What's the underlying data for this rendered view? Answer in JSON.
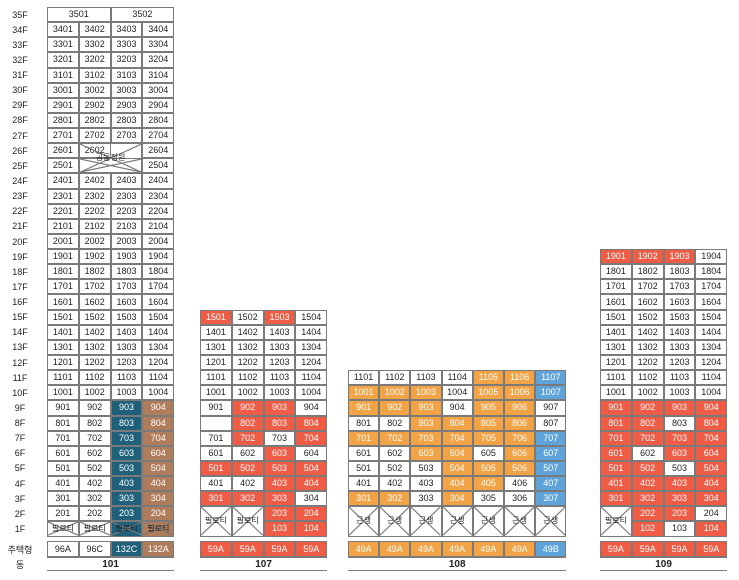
{
  "floors": [
    "35F",
    "34F",
    "33F",
    "32F",
    "31F",
    "30F",
    "29F",
    "28F",
    "27F",
    "26F",
    "25F",
    "24F",
    "23F",
    "22F",
    "21F",
    "20F",
    "19F",
    "18F",
    "17F",
    "16F",
    "15F",
    "14F",
    "13F",
    "12F",
    "11F",
    "10F",
    "9F",
    "8F",
    "7F",
    "6F",
    "5F",
    "4F",
    "3F",
    "2F",
    "1F"
  ],
  "row_labels": {
    "housing_type": "주택형",
    "building": "동"
  },
  "buildings": [
    {
      "name": "101",
      "types": [
        "96A",
        "96C",
        "132C",
        "132A"
      ],
      "type_colors": [
        "",
        "",
        "tel",
        "brn"
      ],
      "top35": [
        "3501",
        "3502"
      ],
      "shared_space_label": "공동정원",
      "pilotis_label": "필로티",
      "rows": [
        [
          "3401",
          "3402",
          "3403",
          "3404"
        ],
        [
          "3301",
          "3302",
          "3303",
          "3304"
        ],
        [
          "3201",
          "3202",
          "3203",
          "3204"
        ],
        [
          "3101",
          "3102",
          "3103",
          "3104"
        ],
        [
          "3001",
          "3002",
          "3003",
          "3004"
        ],
        [
          "2901",
          "2902",
          "2903",
          "2904"
        ],
        [
          "2801",
          "2802",
          "2803",
          "2804"
        ],
        [
          "2701",
          "2702",
          "2703",
          "2704"
        ],
        [
          "2601",
          "2602",
          "",
          "2604"
        ],
        [
          "2501",
          "",
          "",
          "2504"
        ],
        [
          "2401",
          "2402",
          "2403",
          "2404"
        ],
        [
          "2301",
          "2302",
          "2303",
          "2304"
        ],
        [
          "2201",
          "2202",
          "2203",
          "2204"
        ],
        [
          "2101",
          "2102",
          "2103",
          "2104"
        ],
        [
          "2001",
          "2002",
          "2003",
          "2004"
        ],
        [
          "1901",
          "1902",
          "1903",
          "1904"
        ],
        [
          "1801",
          "1802",
          "1803",
          "1804"
        ],
        [
          "1701",
          "1702",
          "1703",
          "1704"
        ],
        [
          "1601",
          "1602",
          "1603",
          "1604"
        ],
        [
          "1501",
          "1502",
          "1503",
          "1504"
        ],
        [
          "1401",
          "1402",
          "1403",
          "1404"
        ],
        [
          "1301",
          "1302",
          "1303",
          "1304"
        ],
        [
          "1201",
          "1202",
          "1203",
          "1204"
        ],
        [
          "1101",
          "1102",
          "1103",
          "1104"
        ],
        [
          "1001",
          "1002",
          "1003",
          "1004"
        ],
        [
          "901",
          "902",
          "903",
          "904"
        ],
        [
          "801",
          "802",
          "803",
          "804"
        ],
        [
          "701",
          "702",
          "703",
          "704"
        ],
        [
          "601",
          "602",
          "603",
          "604"
        ],
        [
          "501",
          "502",
          "503",
          "504"
        ],
        [
          "401",
          "402",
          "403",
          "404"
        ],
        [
          "301",
          "302",
          "303",
          "304"
        ],
        [
          "201",
          "202",
          "203",
          "204"
        ]
      ],
      "colors_low": [
        [
          "",
          "",
          "tel",
          "brn"
        ],
        [
          "",
          "",
          "tel",
          "brn"
        ],
        [
          "",
          "",
          "tel",
          "brn"
        ],
        [
          "",
          "",
          "tel",
          "brn"
        ],
        [
          "",
          "",
          "tel",
          "brn"
        ],
        [
          "",
          "",
          "tel",
          "brn"
        ],
        [
          "",
          "",
          "tel",
          "brn"
        ],
        [
          "",
          "",
          "tel",
          "brn"
        ]
      ]
    },
    {
      "name": "107",
      "types": [
        "59A",
        "59A",
        "59A",
        "59A"
      ],
      "type_colors": [
        "red",
        "red",
        "red",
        "red"
      ],
      "pilotis_label": "필로티",
      "rows": [
        [
          "1501",
          "1502",
          "1503",
          "1504"
        ],
        [
          "1401",
          "1402",
          "1403",
          "1404"
        ],
        [
          "1301",
          "1302",
          "1303",
          "1304"
        ],
        [
          "1201",
          "1202",
          "1203",
          "1204"
        ],
        [
          "1101",
          "1102",
          "1103",
          "1104"
        ],
        [
          "1001",
          "1002",
          "1003",
          "1004"
        ],
        [
          "901",
          "902",
          "903",
          "904"
        ],
        [
          "",
          "802",
          "803",
          "804"
        ],
        [
          "701",
          "702",
          "703",
          "704"
        ],
        [
          "601",
          "602",
          "603",
          "604"
        ],
        [
          "501",
          "502",
          "503",
          "504"
        ],
        [
          "401",
          "402",
          "403",
          "404"
        ],
        [
          "301",
          "302",
          "303",
          "304"
        ],
        [
          "",
          "",
          "203",
          "204"
        ],
        [
          "",
          "",
          "103",
          "104"
        ]
      ],
      "colors": [
        [
          "red",
          "",
          "red",
          ""
        ],
        [
          "",
          "",
          "",
          ""
        ],
        [
          "",
          "",
          "",
          ""
        ],
        [
          "",
          "",
          "",
          ""
        ],
        [
          "",
          "",
          "",
          ""
        ],
        [
          "",
          "",
          "",
          ""
        ],
        [
          "",
          "red",
          "red",
          ""
        ],
        [
          "",
          "red",
          "red",
          "red"
        ],
        [
          "",
          "red",
          "",
          "red"
        ],
        [
          "",
          "",
          "red",
          ""
        ],
        [
          "red",
          "red",
          "red",
          "red"
        ],
        [
          "",
          "",
          "red",
          "red"
        ],
        [
          "red",
          "red",
          "red",
          ""
        ],
        [
          "",
          "",
          "red",
          "red"
        ],
        [
          "",
          "",
          "red",
          "red"
        ]
      ]
    },
    {
      "name": "108",
      "types": [
        "49A",
        "49A",
        "49A",
        "49A",
        "49A",
        "49A",
        "49B"
      ],
      "type_colors": [
        "org",
        "org",
        "org",
        "org",
        "org",
        "org",
        "blu"
      ],
      "community_label": "근생",
      "rows": [
        [
          "1101",
          "1102",
          "1103",
          "1104",
          "1105",
          "1106",
          "1107"
        ],
        [
          "1001",
          "1002",
          "1003",
          "1004",
          "1005",
          "1006",
          "1007"
        ],
        [
          "901",
          "902",
          "903",
          "904",
          "905",
          "906",
          "907"
        ],
        [
          "801",
          "802",
          "803",
          "804",
          "805",
          "806",
          "807"
        ],
        [
          "701",
          "702",
          "703",
          "704",
          "705",
          "706",
          "707"
        ],
        [
          "601",
          "602",
          "603",
          "604",
          "605",
          "606",
          "607"
        ],
        [
          "501",
          "502",
          "503",
          "504",
          "505",
          "506",
          "507"
        ],
        [
          "401",
          "402",
          "403",
          "404",
          "405",
          "406",
          "407"
        ],
        [
          "301",
          "302",
          "303",
          "304",
          "305",
          "306",
          "307"
        ]
      ],
      "colors": [
        [
          "",
          "",
          "",
          "",
          "org",
          "org",
          "blu"
        ],
        [
          "org",
          "org",
          "org",
          "",
          "org",
          "org",
          "blu"
        ],
        [
          "org",
          "org",
          "org",
          "",
          "org",
          "org",
          ""
        ],
        [
          "",
          "",
          "org",
          "org",
          "org",
          "org",
          ""
        ],
        [
          "org",
          "org",
          "org",
          "org",
          "org",
          "org",
          "blu"
        ],
        [
          "",
          "",
          "org",
          "org",
          "",
          "org",
          "blu"
        ],
        [
          "",
          "",
          "",
          "org",
          "org",
          "org",
          "blu"
        ],
        [
          "",
          "",
          "",
          "org",
          "org",
          "",
          "blu"
        ],
        [
          "org",
          "org",
          "",
          "org",
          "",
          "",
          "blu"
        ]
      ]
    },
    {
      "name": "109",
      "types": [
        "59A",
        "59A",
        "59A",
        "59A"
      ],
      "type_colors": [
        "red",
        "red",
        "red",
        "red"
      ],
      "pilotis_label": "필로티",
      "rows": [
        [
          "1901",
          "1902",
          "1903",
          "1904"
        ],
        [
          "1801",
          "1802",
          "1803",
          "1804"
        ],
        [
          "1701",
          "1702",
          "1703",
          "1704"
        ],
        [
          "1601",
          "1602",
          "1603",
          "1604"
        ],
        [
          "1501",
          "1502",
          "1503",
          "1504"
        ],
        [
          "1401",
          "1402",
          "1403",
          "1404"
        ],
        [
          "1301",
          "1302",
          "1303",
          "1304"
        ],
        [
          "1201",
          "1202",
          "1203",
          "1204"
        ],
        [
          "1101",
          "1102",
          "1103",
          "1104"
        ],
        [
          "1001",
          "1002",
          "1003",
          "1004"
        ],
        [
          "901",
          "902",
          "903",
          "904"
        ],
        [
          "801",
          "802",
          "803",
          "804"
        ],
        [
          "701",
          "702",
          "703",
          "704"
        ],
        [
          "601",
          "602",
          "603",
          "604"
        ],
        [
          "501",
          "502",
          "503",
          "504"
        ],
        [
          "401",
          "402",
          "403",
          "404"
        ],
        [
          "301",
          "302",
          "303",
          "304"
        ],
        [
          "",
          "202",
          "203",
          "204"
        ],
        [
          "",
          "102",
          "103",
          "104"
        ]
      ],
      "colors": [
        [
          "red",
          "red",
          "red",
          ""
        ],
        [
          "",
          "",
          "",
          ""
        ],
        [
          "",
          "",
          "",
          ""
        ],
        [
          "",
          "",
          "",
          ""
        ],
        [
          "",
          "",
          "",
          ""
        ],
        [
          "",
          "",
          "",
          ""
        ],
        [
          "",
          "",
          "",
          ""
        ],
        [
          "",
          "",
          "",
          ""
        ],
        [
          "",
          "",
          "",
          ""
        ],
        [
          "",
          "",
          "",
          ""
        ],
        [
          "red",
          "red",
          "red",
          "red"
        ],
        [
          "red",
          "red",
          "",
          "red"
        ],
        [
          "red",
          "red",
          "red",
          "red"
        ],
        [
          "red",
          "",
          "red",
          "red"
        ],
        [
          "red",
          "red",
          "",
          "red"
        ],
        [
          "red",
          "red",
          "red",
          "red"
        ],
        [
          "red",
          "red",
          "red",
          "red"
        ],
        [
          "",
          "red",
          "red",
          ""
        ],
        [
          "",
          "red",
          "",
          "red"
        ]
      ]
    }
  ],
  "colors": {
    "red": "#ef5c45",
    "orange": "#f2a346",
    "blue": "#5fa3db",
    "teal": "#1f617a",
    "brown": "#b07d5c"
  }
}
